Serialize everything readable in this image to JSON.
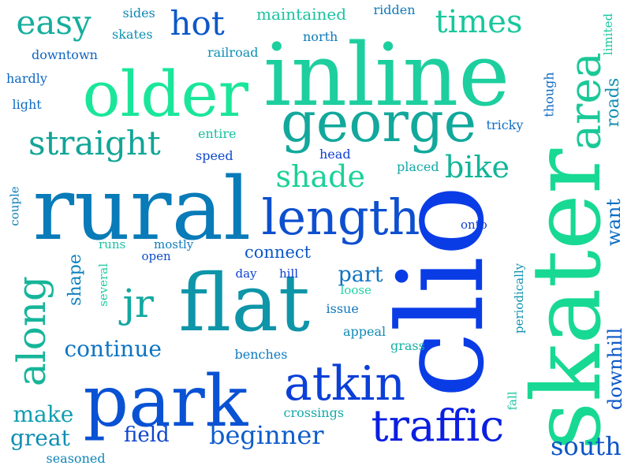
{
  "words": [
    {
      "text": "clio",
      "color": "#0a3ce6",
      "vertical": true
    },
    {
      "text": "skater",
      "color": "#18d993",
      "vertical": true
    },
    {
      "text": "inline",
      "color": "#1dcf9e",
      "vertical": false
    },
    {
      "text": "rural",
      "color": "#087bb8",
      "vertical": false
    },
    {
      "text": "flat",
      "color": "#0e95a8",
      "vertical": false
    },
    {
      "text": "park",
      "color": "#0a52d4",
      "vertical": false
    },
    {
      "text": "older",
      "color": "#1ae69a",
      "vertical": false
    },
    {
      "text": "george",
      "color": "#12a89c",
      "vertical": false
    },
    {
      "text": "length",
      "color": "#0d4fcf",
      "vertical": false
    },
    {
      "text": "atkin",
      "color": "#0b3fd8",
      "vertical": false
    },
    {
      "text": "traffic",
      "color": "#0a1fe0",
      "vertical": false
    },
    {
      "text": "along",
      "color": "#16b59a",
      "vertical": true
    },
    {
      "text": "area",
      "color": "#1bc898",
      "vertical": true
    },
    {
      "text": "jr",
      "color": "#11a8a0",
      "vertical": false
    },
    {
      "text": "straight",
      "color": "#11a597",
      "vertical": false
    },
    {
      "text": "easy",
      "color": "#14ae9e",
      "vertical": false
    },
    {
      "text": "hot",
      "color": "#0d58c9",
      "vertical": false
    },
    {
      "text": "times",
      "color": "#19c79d",
      "vertical": false
    },
    {
      "text": "shade",
      "color": "#1cd198",
      "vertical": false
    },
    {
      "text": "bike",
      "color": "#12b598",
      "vertical": false
    },
    {
      "text": "beginner",
      "color": "#0d5ccb",
      "vertical": false
    },
    {
      "text": "continue",
      "color": "#0c74c4",
      "vertical": false
    },
    {
      "text": "south",
      "color": "#0c55c8",
      "vertical": false
    },
    {
      "text": "great",
      "color": "#0f8db3",
      "vertical": false
    },
    {
      "text": "field",
      "color": "#0d44d0",
      "vertical": false
    },
    {
      "text": "make",
      "color": "#119db0",
      "vertical": false
    },
    {
      "text": "part",
      "color": "#0f73c1",
      "vertical": false
    },
    {
      "text": "roads",
      "color": "#118fb3",
      "vertical": true
    },
    {
      "text": "want",
      "color": "#0c6ec4",
      "vertical": true
    },
    {
      "text": "downhill",
      "color": "#0c59c8",
      "vertical": true
    },
    {
      "text": "shape",
      "color": "#0e82bd",
      "vertical": true
    },
    {
      "text": "connect",
      "color": "#0c57c8",
      "vertical": false
    },
    {
      "text": "maintained",
      "color": "#18c4a0",
      "vertical": false
    },
    {
      "text": "skates",
      "color": "#0f91b1",
      "vertical": false
    },
    {
      "text": "sides",
      "color": "#0f87b4",
      "vertical": false
    },
    {
      "text": "ridden",
      "color": "#0f7ab8",
      "vertical": false
    },
    {
      "text": "north",
      "color": "#0e7bbb",
      "vertical": false
    },
    {
      "text": "downtown",
      "color": "#0e66c0",
      "vertical": false
    },
    {
      "text": "railroad",
      "color": "#0e8fb6",
      "vertical": false
    },
    {
      "text": "hardly",
      "color": "#0d68c3",
      "vertical": false
    },
    {
      "text": "light",
      "color": "#0e6bc2",
      "vertical": false
    },
    {
      "text": "entire",
      "color": "#16c0a0",
      "vertical": false
    },
    {
      "text": "speed",
      "color": "#0d48cc",
      "vertical": false
    },
    {
      "text": "head",
      "color": "#0f3fd6",
      "vertical": false
    },
    {
      "text": "placed",
      "color": "#12a7a6",
      "vertical": false
    },
    {
      "text": "tricky",
      "color": "#0e6ec2",
      "vertical": false
    },
    {
      "text": "though",
      "color": "#0f6ac0",
      "vertical": true
    },
    {
      "text": "limited",
      "color": "#18c8a2",
      "vertical": true
    },
    {
      "text": "couple",
      "color": "#0f80b8",
      "vertical": true
    },
    {
      "text": "onto",
      "color": "#0d3ed2",
      "vertical": false
    },
    {
      "text": "runs",
      "color": "#17c3a3",
      "vertical": false
    },
    {
      "text": "mostly",
      "color": "#0f7bbb",
      "vertical": false
    },
    {
      "text": "open",
      "color": "#0d4ccc",
      "vertical": false
    },
    {
      "text": "day",
      "color": "#0c41d2",
      "vertical": false
    },
    {
      "text": "hill",
      "color": "#0c3ed4",
      "vertical": false
    },
    {
      "text": "loose",
      "color": "#1ed3a4",
      "vertical": false
    },
    {
      "text": "issue",
      "color": "#0d76bf",
      "vertical": false
    },
    {
      "text": "several",
      "color": "#1fcba4",
      "vertical": true
    },
    {
      "text": "periodically",
      "color": "#1294b0",
      "vertical": true
    },
    {
      "text": "appeal",
      "color": "#0f8ab4",
      "vertical": false
    },
    {
      "text": "grass",
      "color": "#15b0a5",
      "vertical": false
    },
    {
      "text": "benches",
      "color": "#0d7ac0",
      "vertical": false
    },
    {
      "text": "fall",
      "color": "#19c6a0",
      "vertical": true
    },
    {
      "text": "crossings",
      "color": "#16a8a8",
      "vertical": false
    },
    {
      "text": "seasoned",
      "color": "#0f85b8",
      "vertical": false
    }
  ]
}
